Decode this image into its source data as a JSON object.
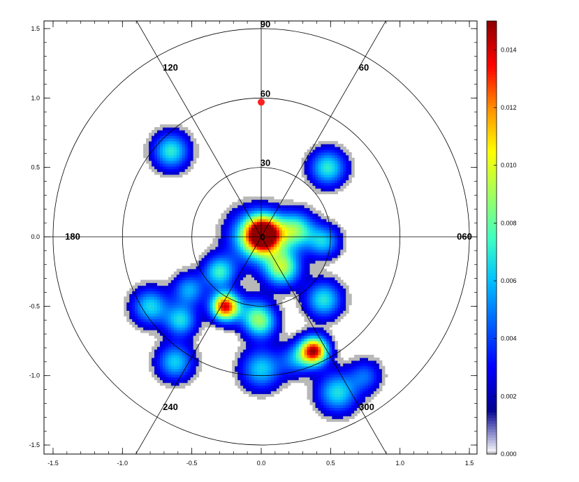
{
  "chart_data": {
    "type": "heatmap",
    "title": "",
    "xlabel": "",
    "ylabel": "",
    "projection": "polar sky plot (zenith angle radial, azimuth angular)",
    "xlim": [
      -1.55,
      1.55
    ],
    "ylim": [
      -1.55,
      1.55
    ],
    "x_ticks": [
      "-1.5",
      "-1.0",
      "-0.5",
      "0.0",
      "0.5",
      "1.0",
      "1.5"
    ],
    "y_ticks": [
      "1.5",
      "1.0",
      "0.5",
      "0.0",
      "-0.5",
      "-1.0",
      "-1.5"
    ],
    "rings": [
      {
        "radius": 0.5,
        "label": "30"
      },
      {
        "radius": 1.0,
        "label": "60"
      },
      {
        "radius": 1.5,
        "label": "90"
      }
    ],
    "center_label": "0",
    "azimuth_labels": [
      "060",
      "60",
      "90",
      "120",
      "180",
      "240",
      "300"
    ],
    "azimuth_lines_deg": [
      60,
      120
    ],
    "colorbar": {
      "range": [
        0.0,
        0.015
      ],
      "ticks": [
        "0.000",
        "0.002",
        "0.004",
        "0.006",
        "0.008",
        "0.010",
        "0.012",
        "0.014"
      ],
      "colormap": [
        "#ffffff",
        "#000090",
        "#0000ff",
        "#0060ff",
        "#00c0ff",
        "#40ffc0",
        "#a0ff60",
        "#ffff00",
        "#ff9000",
        "#ff0000",
        "#900000"
      ]
    },
    "marker": {
      "x": 0.0,
      "y": 0.97,
      "color": "#ff2020"
    },
    "blobs": [
      {
        "x": 0.02,
        "y": 0.02,
        "peak": 0.0148,
        "sigma": 0.09
      },
      {
        "x": -0.05,
        "y": 0.0,
        "peak": 0.0065,
        "sigma": 0.13
      },
      {
        "x": 0.25,
        "y": 0.05,
        "peak": 0.0075,
        "sigma": 0.09
      },
      {
        "x": 0.45,
        "y": -0.03,
        "peak": 0.0055,
        "sigma": 0.08
      },
      {
        "x": 0.15,
        "y": -0.22,
        "peak": 0.0085,
        "sigma": 0.09
      },
      {
        "x": -0.3,
        "y": -0.25,
        "peak": 0.0065,
        "sigma": 0.08
      },
      {
        "x": -0.52,
        "y": -0.38,
        "peak": 0.0048,
        "sigma": 0.08
      },
      {
        "x": -0.26,
        "y": -0.5,
        "peak": 0.0138,
        "sigma": 0.07
      },
      {
        "x": -0.05,
        "y": -0.55,
        "peak": 0.004,
        "sigma": 0.09
      },
      {
        "x": 0.0,
        "y": -0.62,
        "peak": 0.0055,
        "sigma": 0.08
      },
      {
        "x": 0.45,
        "y": -0.45,
        "peak": 0.0062,
        "sigma": 0.09
      },
      {
        "x": -0.8,
        "y": -0.5,
        "peak": 0.0058,
        "sigma": 0.09
      },
      {
        "x": -0.58,
        "y": -0.6,
        "peak": 0.0058,
        "sigma": 0.08
      },
      {
        "x": -0.62,
        "y": -0.9,
        "peak": 0.0056,
        "sigma": 0.09
      },
      {
        "x": -0.0,
        "y": -0.95,
        "peak": 0.0056,
        "sigma": 0.1
      },
      {
        "x": 0.25,
        "y": -0.88,
        "peak": 0.004,
        "sigma": 0.08
      },
      {
        "x": 0.38,
        "y": -0.82,
        "peak": 0.0142,
        "sigma": 0.07
      },
      {
        "x": 0.55,
        "y": -1.12,
        "peak": 0.006,
        "sigma": 0.1
      },
      {
        "x": 0.75,
        "y": -1.0,
        "peak": 0.0035,
        "sigma": 0.08
      },
      {
        "x": -0.65,
        "y": 0.62,
        "peak": 0.0064,
        "sigma": 0.09
      },
      {
        "x": 0.48,
        "y": 0.5,
        "peak": 0.0064,
        "sigma": 0.09
      }
    ]
  }
}
